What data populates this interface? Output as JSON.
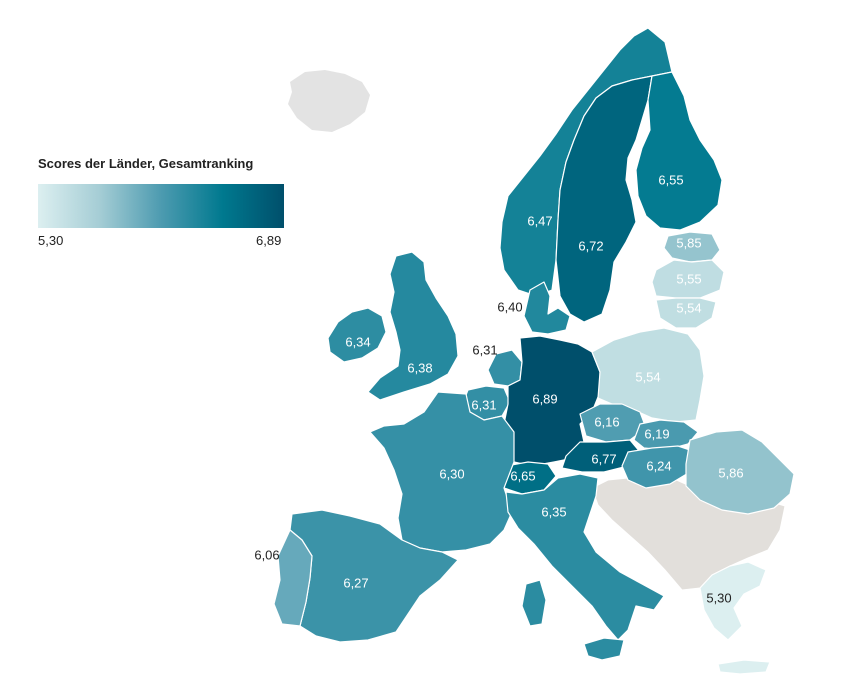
{
  "legend": {
    "title": "Scores der Länder, Gesamtranking",
    "min_label": "5,30",
    "max_label": "6,89",
    "min_value": 5.3,
    "max_value": 6.89,
    "color_low": "#dceff0",
    "color_high": "#004f6b"
  },
  "neutral_color": "#e2dfdb",
  "no_data_color": "#e3e3e3",
  "countries": [
    {
      "id": "norway",
      "label": "6,47",
      "value": 6.47
    },
    {
      "id": "sweden",
      "label": "6,72",
      "value": 6.72
    },
    {
      "id": "finland",
      "label": "6,55",
      "value": 6.55
    },
    {
      "id": "estonia",
      "label": "5,85",
      "value": 5.85
    },
    {
      "id": "latvia",
      "label": "5,55",
      "value": 5.55
    },
    {
      "id": "lithuania",
      "label": "5,54",
      "value": 5.54
    },
    {
      "id": "denmark",
      "label": "6,40",
      "value": 6.4
    },
    {
      "id": "ireland",
      "label": "6,34",
      "value": 6.34
    },
    {
      "id": "uk",
      "label": "6,38",
      "value": 6.38
    },
    {
      "id": "netherlands",
      "label": "6,31",
      "value": 6.31
    },
    {
      "id": "belgium",
      "label": "6,31",
      "value": 6.31
    },
    {
      "id": "germany",
      "label": "6,89",
      "value": 6.89
    },
    {
      "id": "poland",
      "label": "5,54",
      "value": 5.54
    },
    {
      "id": "czechia",
      "label": "6,16",
      "value": 6.16
    },
    {
      "id": "slovakia",
      "label": "6,19",
      "value": 6.19
    },
    {
      "id": "austria",
      "label": "6,77",
      "value": 6.77
    },
    {
      "id": "switzerland",
      "label": "6,65",
      "value": 6.65
    },
    {
      "id": "hungary",
      "label": "6,24",
      "value": 6.24
    },
    {
      "id": "romania",
      "label": "5,86",
      "value": 5.86
    },
    {
      "id": "france",
      "label": "6,30",
      "value": 6.3
    },
    {
      "id": "italy",
      "label": "6,35",
      "value": 6.35
    },
    {
      "id": "spain",
      "label": "6,27",
      "value": 6.27
    },
    {
      "id": "portugal",
      "label": "6,06",
      "value": 6.06
    },
    {
      "id": "greece",
      "label": "5,30",
      "value": 5.3
    }
  ]
}
